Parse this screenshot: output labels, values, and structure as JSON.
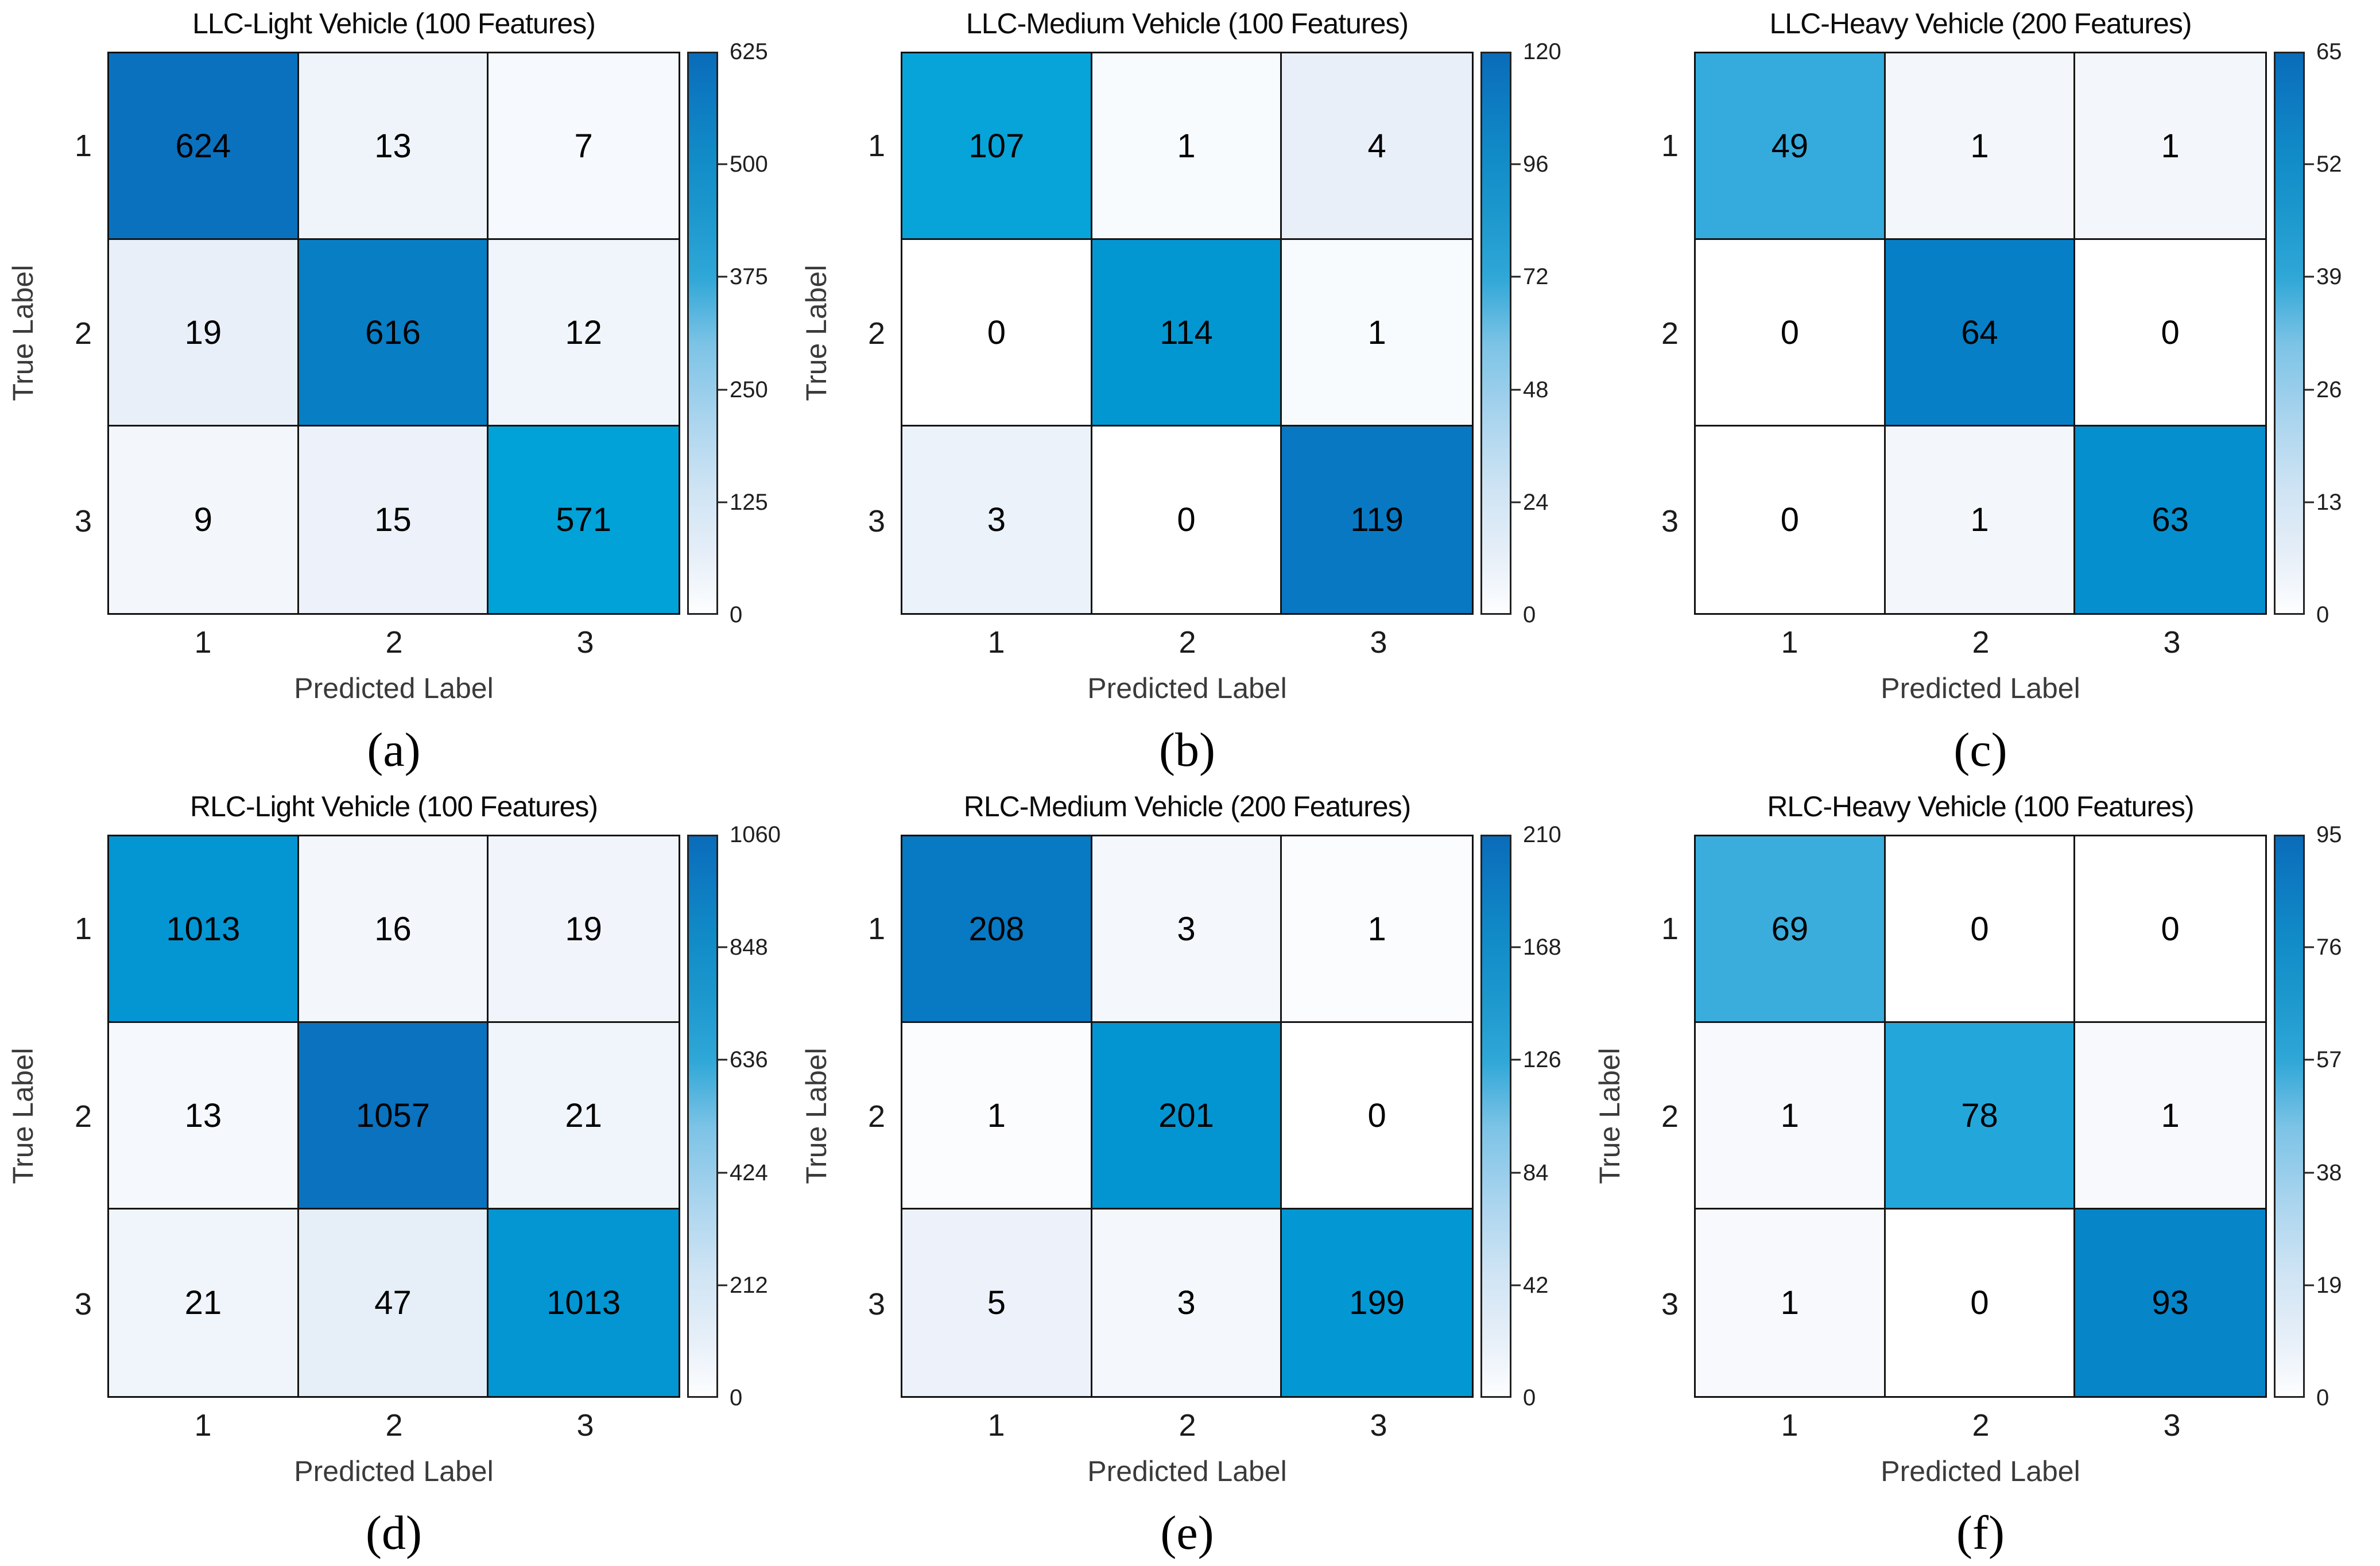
{
  "figure": {
    "background": "#ffffff",
    "grid_layout": "2 rows x 3 columns",
    "accent_colors": {
      "heatmap_max_blue": "#0a6fbe",
      "heatmap_cyan": "#00a3d9",
      "heatmap_min": "#ffffff",
      "axis_label_gray": "#3a3a3a",
      "tick_text": "#1b1b1b"
    }
  },
  "colormap": {
    "cell_stops": [
      [
        0.0,
        "#ffffff"
      ],
      [
        0.015,
        "#f3f7fc"
      ],
      [
        0.03,
        "#e9eff8"
      ],
      [
        0.08,
        "#dfeaf6"
      ],
      [
        0.18,
        "#cbe0f2"
      ],
      [
        0.32,
        "#a8cfeb"
      ],
      [
        0.5,
        "#78bee4"
      ],
      [
        0.68,
        "#46b0de"
      ],
      [
        0.82,
        "#23a7da"
      ],
      [
        0.91,
        "#00a3d9"
      ],
      [
        0.965,
        "#0493d0"
      ],
      [
        1.0,
        "#0a6fbe"
      ]
    ],
    "colorbar_stops": [
      [
        0.0,
        "#fdfeff"
      ],
      [
        0.1,
        "#e7eff8"
      ],
      [
        0.22,
        "#cfe4f4"
      ],
      [
        0.35,
        "#a9d4ee"
      ],
      [
        0.48,
        "#7cc3e6"
      ],
      [
        0.6,
        "#2fa7d7"
      ],
      [
        0.72,
        "#1b97cd"
      ],
      [
        0.82,
        "#118bc7"
      ],
      [
        0.92,
        "#0d7ac1"
      ],
      [
        1.0,
        "#0a6cba"
      ]
    ]
  },
  "chart_data": [
    {
      "type": "heatmap",
      "panel": "a",
      "caption": "(a)",
      "title": "LLC-Light Vehicle (100 Features)",
      "xlabel": "Predicted Label",
      "ylabel": "True Label",
      "x_tick_labels": [
        "1",
        "2",
        "3"
      ],
      "y_tick_labels": [
        "1",
        "2",
        "3"
      ],
      "matrix": [
        [
          624,
          13,
          7
        ],
        [
          19,
          616,
          12
        ],
        [
          9,
          15,
          571
        ]
      ],
      "colorbar_max": 625,
      "colorbar_ticks": [
        0,
        125,
        250,
        375,
        500,
        625
      ]
    },
    {
      "type": "heatmap",
      "panel": "b",
      "caption": "(b)",
      "title": "LLC-Medium Vehicle (100 Features)",
      "xlabel": "Predicted Label",
      "ylabel": "True Label",
      "x_tick_labels": [
        "1",
        "2",
        "3"
      ],
      "y_tick_labels": [
        "1",
        "2",
        "3"
      ],
      "matrix": [
        [
          107,
          1,
          4
        ],
        [
          0,
          114,
          1
        ],
        [
          3,
          0,
          119
        ]
      ],
      "colorbar_max": 120,
      "colorbar_ticks": [
        0,
        24,
        48,
        72,
        96,
        120
      ]
    },
    {
      "type": "heatmap",
      "panel": "c",
      "caption": "(c)",
      "title": "LLC-Heavy Vehicle (200 Features)",
      "xlabel": "Predicted Label",
      "ylabel": "",
      "x_tick_labels": [
        "1",
        "2",
        "3"
      ],
      "y_tick_labels": [
        "1",
        "2",
        "3"
      ],
      "matrix": [
        [
          49,
          1,
          1
        ],
        [
          0,
          64,
          0
        ],
        [
          0,
          1,
          63
        ]
      ],
      "colorbar_max": 65,
      "colorbar_ticks": [
        0,
        13,
        26,
        39,
        52,
        65
      ]
    },
    {
      "type": "heatmap",
      "panel": "d",
      "caption": "(d)",
      "title": "RLC-Light Vehicle (100 Features)",
      "xlabel": "Predicted Label",
      "ylabel": "True Label",
      "x_tick_labels": [
        "1",
        "2",
        "3"
      ],
      "y_tick_labels": [
        "1",
        "2",
        "3"
      ],
      "matrix": [
        [
          1013,
          16,
          19
        ],
        [
          13,
          1057,
          21
        ],
        [
          21,
          47,
          1013
        ]
      ],
      "colorbar_max": 1060,
      "colorbar_ticks": [
        0,
        212,
        424,
        636,
        848,
        1060
      ]
    },
    {
      "type": "heatmap",
      "panel": "e",
      "caption": "(e)",
      "title": "RLC-Medium Vehicle (200 Features)",
      "xlabel": "Predicted Label",
      "ylabel": "True Label",
      "x_tick_labels": [
        "1",
        "2",
        "3"
      ],
      "y_tick_labels": [
        "1",
        "2",
        "3"
      ],
      "matrix": [
        [
          208,
          3,
          1
        ],
        [
          1,
          201,
          0
        ],
        [
          5,
          3,
          199
        ]
      ],
      "colorbar_max": 210,
      "colorbar_ticks": [
        0,
        42,
        84,
        126,
        168,
        210
      ]
    },
    {
      "type": "heatmap",
      "panel": "f",
      "caption": "(f)",
      "title": "RLC-Heavy Vehicle (100 Features)",
      "xlabel": "Predicted Label",
      "ylabel": "True Label",
      "x_tick_labels": [
        "1",
        "2",
        "3"
      ],
      "y_tick_labels": [
        "1",
        "2",
        "3"
      ],
      "matrix": [
        [
          69,
          0,
          0
        ],
        [
          1,
          78,
          1
        ],
        [
          1,
          0,
          93
        ]
      ],
      "colorbar_max": 95,
      "colorbar_ticks": [
        0,
        19,
        38,
        57,
        76,
        95
      ]
    }
  ]
}
